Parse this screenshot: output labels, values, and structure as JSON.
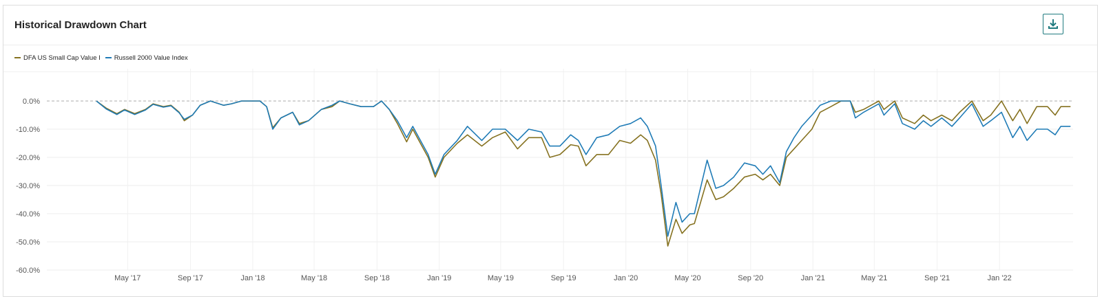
{
  "card": {
    "title": "Historical Drawdown Chart",
    "download_icon": "download-icon"
  },
  "legend": [
    {
      "name": "DFA US Small Cap Value I",
      "color": "#85711f"
    },
    {
      "name": "Russell 2000 Value Index",
      "color": "#1f7bb6"
    }
  ],
  "chart_data": {
    "type": "line",
    "title": "Historical Drawdown Chart",
    "xlabel": "",
    "ylabel": "",
    "x_ticks": [
      "May '17",
      "Sep '17",
      "Jan '18",
      "May '18",
      "Sep '18",
      "Jan '19",
      "May '19",
      "Sep '19",
      "Jan '20",
      "May '20",
      "Sep '20",
      "Jan '21",
      "May '21",
      "Sep '21",
      "Jan '22"
    ],
    "y_ticks": [
      "0.0%",
      "-10.0%",
      "-20.0%",
      "-30.0%",
      "-40.0%",
      "-50.0%",
      "-60.0%"
    ],
    "ylim": [
      -60,
      0
    ],
    "xlim": [
      "2016-11-24",
      "2022-05-25"
    ],
    "grid": true,
    "zero_line": "dashed",
    "legend_position": "top-left",
    "series": [
      {
        "name": "DFA US Small Cap Value I",
        "color": "#85711f",
        "points": [
          [
            "2017-03-01",
            0
          ],
          [
            "2017-03-20",
            -2.5
          ],
          [
            "2017-04-10",
            -4.5
          ],
          [
            "2017-04-25",
            -3
          ],
          [
            "2017-05-15",
            -4.5
          ],
          [
            "2017-06-05",
            -3
          ],
          [
            "2017-06-20",
            -1
          ],
          [
            "2017-07-10",
            -2
          ],
          [
            "2017-07-25",
            -1.5
          ],
          [
            "2017-08-10",
            -4
          ],
          [
            "2017-08-20",
            -7
          ],
          [
            "2017-09-05",
            -5
          ],
          [
            "2017-09-20",
            -1.5
          ],
          [
            "2017-10-10",
            0
          ],
          [
            "2017-11-05",
            -1.5
          ],
          [
            "2017-11-20",
            -1
          ],
          [
            "2017-12-10",
            0
          ],
          [
            "2017-12-30",
            0
          ],
          [
            "2018-01-15",
            0
          ],
          [
            "2018-01-28",
            -2
          ],
          [
            "2018-02-09",
            -9.5
          ],
          [
            "2018-02-25",
            -6
          ],
          [
            "2018-03-20",
            -4
          ],
          [
            "2018-04-02",
            -8
          ],
          [
            "2018-04-20",
            -7
          ],
          [
            "2018-05-15",
            -3
          ],
          [
            "2018-06-05",
            -2
          ],
          [
            "2018-06-20",
            0
          ],
          [
            "2018-07-10",
            -1
          ],
          [
            "2018-08-01",
            -2
          ],
          [
            "2018-08-25",
            -2
          ],
          [
            "2018-09-10",
            0
          ],
          [
            "2018-09-25",
            -3
          ],
          [
            "2018-10-11",
            -8
          ],
          [
            "2018-10-29",
            -14.5
          ],
          [
            "2018-11-10",
            -10
          ],
          [
            "2018-11-25",
            -15
          ],
          [
            "2018-12-10",
            -20
          ],
          [
            "2018-12-24",
            -27
          ],
          [
            "2019-01-10",
            -20
          ],
          [
            "2019-02-05",
            -15
          ],
          [
            "2019-02-25",
            -12
          ],
          [
            "2019-03-25",
            -16
          ],
          [
            "2019-04-15",
            -13
          ],
          [
            "2019-05-10",
            -11
          ],
          [
            "2019-06-03",
            -17
          ],
          [
            "2019-06-25",
            -13
          ],
          [
            "2019-07-20",
            -13
          ],
          [
            "2019-08-05",
            -20
          ],
          [
            "2019-08-25",
            -19
          ],
          [
            "2019-09-15",
            -15.5
          ],
          [
            "2019-09-30",
            -16
          ],
          [
            "2019-10-15",
            -23
          ],
          [
            "2019-11-05",
            -19
          ],
          [
            "2019-11-28",
            -19
          ],
          [
            "2019-12-20",
            -14
          ],
          [
            "2020-01-10",
            -15
          ],
          [
            "2020-01-30",
            -12
          ],
          [
            "2020-02-12",
            -14
          ],
          [
            "2020-02-28",
            -21
          ],
          [
            "2020-03-10",
            -33
          ],
          [
            "2020-03-23",
            -51.5
          ],
          [
            "2020-04-08",
            -42
          ],
          [
            "2020-04-20",
            -47
          ],
          [
            "2020-05-05",
            -44
          ],
          [
            "2020-05-14",
            -43.5
          ],
          [
            "2020-06-08",
            -28
          ],
          [
            "2020-06-25",
            -35
          ],
          [
            "2020-07-10",
            -34
          ],
          [
            "2020-07-30",
            -31
          ],
          [
            "2020-08-20",
            -27
          ],
          [
            "2020-09-10",
            -26
          ],
          [
            "2020-09-25",
            -28
          ],
          [
            "2020-10-10",
            -26
          ],
          [
            "2020-10-28",
            -30
          ],
          [
            "2020-11-10",
            -20
          ],
          [
            "2020-11-25",
            -17
          ],
          [
            "2020-12-10",
            -14
          ],
          [
            "2020-12-30",
            -10
          ],
          [
            "2021-01-15",
            -4
          ],
          [
            "2021-02-05",
            -2
          ],
          [
            "2021-02-25",
            0
          ],
          [
            "2021-03-15",
            0
          ],
          [
            "2021-03-25",
            -4
          ],
          [
            "2021-04-10",
            -3
          ],
          [
            "2021-05-10",
            0
          ],
          [
            "2021-05-20",
            -3
          ],
          [
            "2021-06-10",
            0
          ],
          [
            "2021-06-25",
            -6
          ],
          [
            "2021-07-19",
            -8
          ],
          [
            "2021-08-05",
            -5
          ],
          [
            "2021-08-20",
            -7
          ],
          [
            "2021-09-10",
            -5
          ],
          [
            "2021-09-30",
            -7
          ],
          [
            "2021-10-15",
            -4
          ],
          [
            "2021-11-08",
            0
          ],
          [
            "2021-11-30",
            -7
          ],
          [
            "2021-12-15",
            -5
          ],
          [
            "2022-01-05",
            0
          ],
          [
            "2022-01-27",
            -7
          ],
          [
            "2022-02-10",
            -3
          ],
          [
            "2022-02-24",
            -8
          ],
          [
            "2022-03-15",
            -2
          ],
          [
            "2022-04-05",
            -2
          ],
          [
            "2022-04-20",
            -5
          ],
          [
            "2022-05-01",
            -2
          ],
          [
            "2022-05-20",
            -2
          ]
        ]
      },
      {
        "name": "Russell 2000 Value Index",
        "color": "#1f7bb6",
        "points": [
          [
            "2017-03-01",
            0
          ],
          [
            "2017-03-20",
            -2.8
          ],
          [
            "2017-04-10",
            -4.8
          ],
          [
            "2017-04-25",
            -3.2
          ],
          [
            "2017-05-15",
            -4.8
          ],
          [
            "2017-06-05",
            -3.2
          ],
          [
            "2017-06-20",
            -1.2
          ],
          [
            "2017-07-10",
            -2.2
          ],
          [
            "2017-07-25",
            -1.7
          ],
          [
            "2017-08-10",
            -4.2
          ],
          [
            "2017-08-20",
            -6.5
          ],
          [
            "2017-09-05",
            -5
          ],
          [
            "2017-09-20",
            -1.5
          ],
          [
            "2017-10-10",
            0
          ],
          [
            "2017-11-05",
            -1.5
          ],
          [
            "2017-11-20",
            -1
          ],
          [
            "2017-12-10",
            0
          ],
          [
            "2017-12-30",
            0
          ],
          [
            "2018-01-15",
            0
          ],
          [
            "2018-01-28",
            -2
          ],
          [
            "2018-02-09",
            -10
          ],
          [
            "2018-02-25",
            -6
          ],
          [
            "2018-03-20",
            -4
          ],
          [
            "2018-04-02",
            -8.5
          ],
          [
            "2018-04-20",
            -7
          ],
          [
            "2018-05-15",
            -3
          ],
          [
            "2018-06-05",
            -1.5
          ],
          [
            "2018-06-20",
            0
          ],
          [
            "2018-07-10",
            -1
          ],
          [
            "2018-08-01",
            -2
          ],
          [
            "2018-08-25",
            -2
          ],
          [
            "2018-09-10",
            0
          ],
          [
            "2018-09-25",
            -3
          ],
          [
            "2018-10-11",
            -7
          ],
          [
            "2018-10-29",
            -13
          ],
          [
            "2018-11-10",
            -9
          ],
          [
            "2018-11-25",
            -14
          ],
          [
            "2018-12-10",
            -19
          ],
          [
            "2018-12-24",
            -26
          ],
          [
            "2019-01-10",
            -19
          ],
          [
            "2019-02-05",
            -14
          ],
          [
            "2019-02-25",
            -9
          ],
          [
            "2019-03-25",
            -14
          ],
          [
            "2019-04-15",
            -10
          ],
          [
            "2019-05-10",
            -10
          ],
          [
            "2019-06-03",
            -14
          ],
          [
            "2019-06-25",
            -10
          ],
          [
            "2019-07-20",
            -11
          ],
          [
            "2019-08-05",
            -16
          ],
          [
            "2019-08-25",
            -16
          ],
          [
            "2019-09-15",
            -12
          ],
          [
            "2019-09-30",
            -14
          ],
          [
            "2019-10-15",
            -19
          ],
          [
            "2019-11-05",
            -13
          ],
          [
            "2019-11-28",
            -12
          ],
          [
            "2019-12-20",
            -9
          ],
          [
            "2020-01-10",
            -8
          ],
          [
            "2020-01-30",
            -6
          ],
          [
            "2020-02-12",
            -9
          ],
          [
            "2020-02-28",
            -16
          ],
          [
            "2020-03-10",
            -30
          ],
          [
            "2020-03-23",
            -48
          ],
          [
            "2020-04-08",
            -36
          ],
          [
            "2020-04-20",
            -43
          ],
          [
            "2020-05-05",
            -40
          ],
          [
            "2020-05-14",
            -40
          ],
          [
            "2020-06-08",
            -21
          ],
          [
            "2020-06-25",
            -31
          ],
          [
            "2020-07-10",
            -30
          ],
          [
            "2020-07-30",
            -27
          ],
          [
            "2020-08-20",
            -22
          ],
          [
            "2020-09-10",
            -23
          ],
          [
            "2020-09-25",
            -26
          ],
          [
            "2020-10-10",
            -23
          ],
          [
            "2020-10-28",
            -29
          ],
          [
            "2020-11-10",
            -18
          ],
          [
            "2020-11-25",
            -13
          ],
          [
            "2020-12-10",
            -9
          ],
          [
            "2020-12-30",
            -5
          ],
          [
            "2021-01-15",
            -1.5
          ],
          [
            "2021-02-05",
            0
          ],
          [
            "2021-02-25",
            0
          ],
          [
            "2021-03-15",
            0
          ],
          [
            "2021-03-25",
            -6
          ],
          [
            "2021-04-10",
            -4
          ],
          [
            "2021-05-10",
            -1
          ],
          [
            "2021-05-20",
            -5
          ],
          [
            "2021-06-10",
            -1
          ],
          [
            "2021-06-25",
            -8
          ],
          [
            "2021-07-19",
            -10
          ],
          [
            "2021-08-05",
            -7
          ],
          [
            "2021-08-20",
            -9
          ],
          [
            "2021-09-10",
            -6
          ],
          [
            "2021-09-30",
            -9
          ],
          [
            "2021-10-15",
            -6
          ],
          [
            "2021-11-08",
            -1
          ],
          [
            "2021-11-30",
            -9
          ],
          [
            "2021-12-15",
            -7
          ],
          [
            "2022-01-05",
            -4
          ],
          [
            "2022-01-27",
            -13
          ],
          [
            "2022-02-10",
            -9
          ],
          [
            "2022-02-24",
            -14
          ],
          [
            "2022-03-15",
            -10
          ],
          [
            "2022-04-05",
            -10
          ],
          [
            "2022-04-20",
            -12
          ],
          [
            "2022-05-01",
            -9
          ],
          [
            "2022-05-20",
            -9
          ]
        ]
      }
    ]
  }
}
